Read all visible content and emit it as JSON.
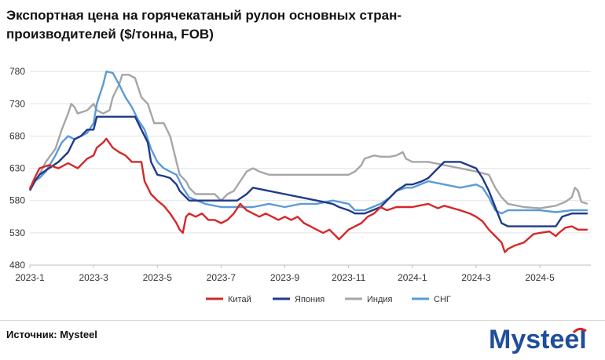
{
  "title": "Экспортная цена на горячекатаный рулон основных стран-производителей ($/тонна, FOB)",
  "source": "Источник: Mysteel",
  "brand": "Mysteel",
  "colors": {
    "china": "#d62728",
    "japan": "#1f3a8a",
    "india": "#a6a6a6",
    "cis": "#5b9bd5",
    "grid": "#e3e3e3",
    "brand": "#1f4e9c"
  },
  "chart_data": {
    "type": "line",
    "title": "Экспортная цена на горячекатаный рулон основных стран-производителей ($/тонна, FOB)",
    "xlabel": "",
    "ylabel": "",
    "ylim": [
      480,
      790
    ],
    "yticks": [
      480,
      530,
      580,
      630,
      680,
      730,
      780
    ],
    "x_unit": "months since 2023-01 (0 = 2023-1)",
    "xlim": [
      0,
      17.6
    ],
    "xticks": [
      {
        "x": 0,
        "label": "2023-1"
      },
      {
        "x": 2,
        "label": "2023-3"
      },
      {
        "x": 4,
        "label": "2023-5"
      },
      {
        "x": 6,
        "label": "2023-7"
      },
      {
        "x": 8,
        "label": "2023-9"
      },
      {
        "x": 10,
        "label": "2023-11"
      },
      {
        "x": 12,
        "label": "2024-1"
      },
      {
        "x": 14,
        "label": "2024-3"
      },
      {
        "x": 16,
        "label": "2024-5"
      }
    ],
    "grid": "horizontal",
    "legend_position": "bottom",
    "series": [
      {
        "name": "Китай",
        "key": "china",
        "points": [
          [
            0,
            598
          ],
          [
            0.15,
            615
          ],
          [
            0.3,
            630
          ],
          [
            0.6,
            635
          ],
          [
            0.9,
            630
          ],
          [
            1.2,
            638
          ],
          [
            1.5,
            630
          ],
          [
            1.8,
            645
          ],
          [
            2.0,
            650
          ],
          [
            2.1,
            662
          ],
          [
            2.3,
            670
          ],
          [
            2.4,
            676
          ],
          [
            2.6,
            662
          ],
          [
            2.8,
            655
          ],
          [
            3.0,
            650
          ],
          [
            3.2,
            640
          ],
          [
            3.5,
            640
          ],
          [
            3.6,
            610
          ],
          [
            3.8,
            590
          ],
          [
            4.0,
            580
          ],
          [
            4.2,
            572
          ],
          [
            4.4,
            560
          ],
          [
            4.6,
            545
          ],
          [
            4.7,
            535
          ],
          [
            4.8,
            530
          ],
          [
            4.9,
            555
          ],
          [
            5.0,
            560
          ],
          [
            5.2,
            555
          ],
          [
            5.4,
            560
          ],
          [
            5.6,
            550
          ],
          [
            5.8,
            550
          ],
          [
            6.0,
            545
          ],
          [
            6.2,
            550
          ],
          [
            6.4,
            560
          ],
          [
            6.6,
            575
          ],
          [
            6.8,
            565
          ],
          [
            7.0,
            560
          ],
          [
            7.2,
            555
          ],
          [
            7.4,
            560
          ],
          [
            7.6,
            555
          ],
          [
            7.8,
            550
          ],
          [
            8.0,
            555
          ],
          [
            8.2,
            550
          ],
          [
            8.4,
            555
          ],
          [
            8.6,
            545
          ],
          [
            8.8,
            540
          ],
          [
            9.0,
            535
          ],
          [
            9.2,
            530
          ],
          [
            9.4,
            535
          ],
          [
            9.6,
            525
          ],
          [
            9.7,
            520
          ],
          [
            9.8,
            525
          ],
          [
            10.0,
            535
          ],
          [
            10.2,
            540
          ],
          [
            10.4,
            545
          ],
          [
            10.6,
            555
          ],
          [
            10.8,
            560
          ],
          [
            11.0,
            570
          ],
          [
            11.2,
            565
          ],
          [
            11.5,
            570
          ],
          [
            12.0,
            570
          ],
          [
            12.2,
            572
          ],
          [
            12.5,
            575
          ],
          [
            12.8,
            568
          ],
          [
            13.0,
            572
          ],
          [
            13.5,
            565
          ],
          [
            13.8,
            560
          ],
          [
            14.0,
            555
          ],
          [
            14.2,
            548
          ],
          [
            14.4,
            535
          ],
          [
            14.6,
            525
          ],
          [
            14.8,
            515
          ],
          [
            14.9,
            500
          ],
          [
            15.0,
            505
          ],
          [
            15.2,
            510
          ],
          [
            15.5,
            515
          ],
          [
            15.8,
            528
          ],
          [
            16.0,
            530
          ],
          [
            16.3,
            532
          ],
          [
            16.5,
            525
          ],
          [
            16.6,
            530
          ],
          [
            16.8,
            538
          ],
          [
            17.0,
            540
          ],
          [
            17.2,
            535
          ],
          [
            17.5,
            535
          ]
        ]
      },
      {
        "name": "Япония",
        "key": "japan",
        "points": [
          [
            0,
            596
          ],
          [
            0.15,
            610
          ],
          [
            0.3,
            620
          ],
          [
            0.6,
            630
          ],
          [
            0.9,
            640
          ],
          [
            1.2,
            655
          ],
          [
            1.4,
            675
          ],
          [
            1.6,
            680
          ],
          [
            1.8,
            690
          ],
          [
            2.0,
            690
          ],
          [
            2.1,
            710
          ],
          [
            2.5,
            710
          ],
          [
            3.0,
            710
          ],
          [
            3.3,
            710
          ],
          [
            3.5,
            690
          ],
          [
            3.7,
            670
          ],
          [
            3.8,
            640
          ],
          [
            4.0,
            620
          ],
          [
            4.2,
            618
          ],
          [
            4.4,
            615
          ],
          [
            4.6,
            605
          ],
          [
            4.7,
            595
          ],
          [
            4.8,
            590
          ],
          [
            5.0,
            580
          ],
          [
            5.5,
            580
          ],
          [
            6.0,
            580
          ],
          [
            6.5,
            580
          ],
          [
            6.8,
            590
          ],
          [
            7.0,
            600
          ],
          [
            7.5,
            595
          ],
          [
            8.0,
            590
          ],
          [
            8.5,
            585
          ],
          [
            9.0,
            580
          ],
          [
            9.5,
            575
          ],
          [
            9.7,
            570
          ],
          [
            10.0,
            565
          ],
          [
            10.2,
            560
          ],
          [
            10.5,
            560
          ],
          [
            11.0,
            570
          ],
          [
            11.3,
            585
          ],
          [
            11.5,
            595
          ],
          [
            11.8,
            605
          ],
          [
            12.0,
            605
          ],
          [
            12.3,
            610
          ],
          [
            12.5,
            615
          ],
          [
            12.8,
            630
          ],
          [
            13.0,
            640
          ],
          [
            13.5,
            640
          ],
          [
            14.0,
            630
          ],
          [
            14.2,
            615
          ],
          [
            14.4,
            595
          ],
          [
            14.6,
            570
          ],
          [
            14.8,
            545
          ],
          [
            15.0,
            540
          ],
          [
            15.5,
            540
          ],
          [
            16.0,
            540
          ],
          [
            16.5,
            540
          ],
          [
            16.7,
            555
          ],
          [
            17.0,
            560
          ],
          [
            17.5,
            560
          ]
        ]
      },
      {
        "name": "Индия",
        "key": "india",
        "points": [
          [
            0,
            595
          ],
          [
            0.15,
            608
          ],
          [
            0.3,
            620
          ],
          [
            0.5,
            640
          ],
          [
            0.8,
            660
          ],
          [
            1.0,
            690
          ],
          [
            1.2,
            715
          ],
          [
            1.3,
            730
          ],
          [
            1.4,
            725
          ],
          [
            1.5,
            715
          ],
          [
            1.8,
            720
          ],
          [
            2.0,
            730
          ],
          [
            2.1,
            720
          ],
          [
            2.3,
            715
          ],
          [
            2.5,
            720
          ],
          [
            2.6,
            740
          ],
          [
            2.8,
            760
          ],
          [
            2.9,
            775
          ],
          [
            3.1,
            775
          ],
          [
            3.3,
            770
          ],
          [
            3.5,
            740
          ],
          [
            3.7,
            730
          ],
          [
            3.8,
            715
          ],
          [
            3.9,
            700
          ],
          [
            4.0,
            700
          ],
          [
            4.2,
            700
          ],
          [
            4.4,
            680
          ],
          [
            4.5,
            660
          ],
          [
            4.6,
            640
          ],
          [
            4.7,
            620
          ],
          [
            4.9,
            610
          ],
          [
            5.0,
            600
          ],
          [
            5.2,
            590
          ],
          [
            5.5,
            590
          ],
          [
            5.8,
            590
          ],
          [
            6.0,
            580
          ],
          [
            6.2,
            590
          ],
          [
            6.4,
            595
          ],
          [
            6.6,
            610
          ],
          [
            6.8,
            625
          ],
          [
            7.0,
            630
          ],
          [
            7.2,
            625
          ],
          [
            7.5,
            620
          ],
          [
            8.0,
            620
          ],
          [
            8.5,
            620
          ],
          [
            9.0,
            620
          ],
          [
            9.5,
            620
          ],
          [
            10.0,
            620
          ],
          [
            10.2,
            625
          ],
          [
            10.4,
            635
          ],
          [
            10.5,
            645
          ],
          [
            10.8,
            650
          ],
          [
            11.0,
            648
          ],
          [
            11.3,
            648
          ],
          [
            11.5,
            650
          ],
          [
            11.7,
            655
          ],
          [
            11.8,
            645
          ],
          [
            12.0,
            640
          ],
          [
            12.5,
            640
          ],
          [
            13.0,
            635
          ],
          [
            13.5,
            630
          ],
          [
            14.0,
            625
          ],
          [
            14.4,
            620
          ],
          [
            14.6,
            600
          ],
          [
            14.8,
            585
          ],
          [
            15.0,
            575
          ],
          [
            15.5,
            570
          ],
          [
            16.0,
            568
          ],
          [
            16.5,
            572
          ],
          [
            16.8,
            578
          ],
          [
            17.0,
            585
          ],
          [
            17.1,
            600
          ],
          [
            17.2,
            595
          ],
          [
            17.3,
            578
          ],
          [
            17.5,
            575
          ]
        ]
      },
      {
        "name": "СНГ",
        "key": "cis",
        "points": [
          [
            0,
            600
          ],
          [
            0.15,
            610
          ],
          [
            0.3,
            615
          ],
          [
            0.5,
            625
          ],
          [
            0.8,
            650
          ],
          [
            1.0,
            670
          ],
          [
            1.2,
            680
          ],
          [
            1.4,
            675
          ],
          [
            1.6,
            680
          ],
          [
            1.8,
            685
          ],
          [
            2.0,
            700
          ],
          [
            2.1,
            730
          ],
          [
            2.3,
            760
          ],
          [
            2.4,
            780
          ],
          [
            2.6,
            778
          ],
          [
            2.8,
            760
          ],
          [
            3.0,
            740
          ],
          [
            3.2,
            725
          ],
          [
            3.4,
            705
          ],
          [
            3.6,
            690
          ],
          [
            3.8,
            660
          ],
          [
            4.0,
            640
          ],
          [
            4.2,
            630
          ],
          [
            4.4,
            625
          ],
          [
            4.6,
            620
          ],
          [
            4.7,
            610
          ],
          [
            4.8,
            600
          ],
          [
            5.0,
            585
          ],
          [
            5.5,
            575
          ],
          [
            6.0,
            570
          ],
          [
            6.5,
            570
          ],
          [
            7.0,
            570
          ],
          [
            7.5,
            575
          ],
          [
            8.0,
            570
          ],
          [
            8.5,
            575
          ],
          [
            9.0,
            575
          ],
          [
            9.5,
            580
          ],
          [
            10.0,
            575
          ],
          [
            10.2,
            565
          ],
          [
            10.5,
            565
          ],
          [
            11.0,
            575
          ],
          [
            11.3,
            585
          ],
          [
            11.5,
            595
          ],
          [
            11.8,
            600
          ],
          [
            12.0,
            600
          ],
          [
            12.5,
            610
          ],
          [
            13.0,
            605
          ],
          [
            13.5,
            600
          ],
          [
            14.0,
            605
          ],
          [
            14.2,
            600
          ],
          [
            14.4,
            585
          ],
          [
            14.6,
            565
          ],
          [
            14.8,
            560
          ],
          [
            15.0,
            565
          ],
          [
            15.5,
            565
          ],
          [
            16.0,
            565
          ],
          [
            16.5,
            562
          ],
          [
            17.0,
            565
          ],
          [
            17.5,
            565
          ]
        ]
      }
    ]
  }
}
